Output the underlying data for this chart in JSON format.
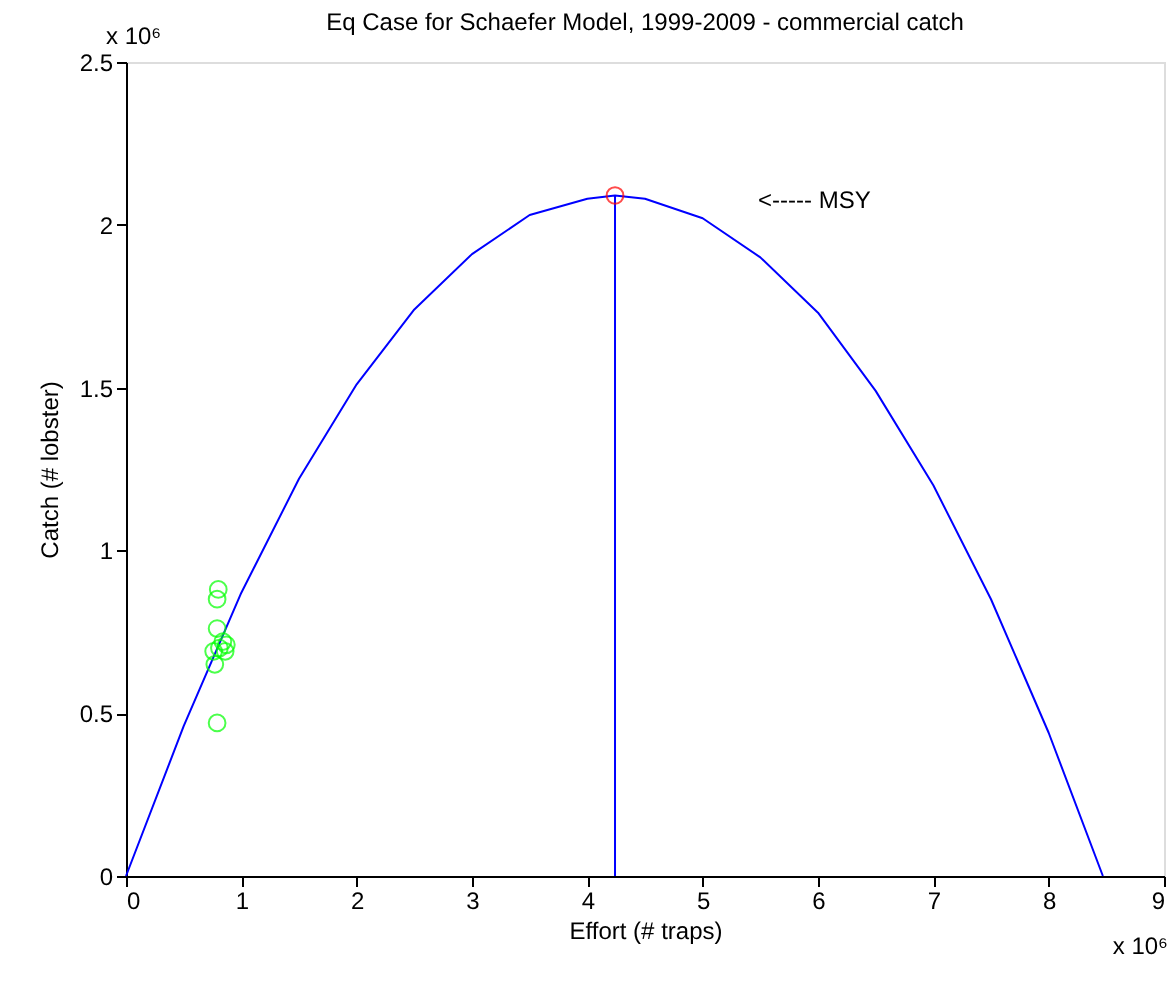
{
  "chart_data": {
    "type": "scatter",
    "title": "Eq Case for Schaefer Model, 1999-2009 - commercial catch",
    "xlabel": "Effort (# traps)",
    "ylabel": "Catch (# lobster)",
    "xlim": [
      0,
      9
    ],
    "xticks": [
      0,
      1,
      2,
      3,
      4,
      5,
      6,
      7,
      8,
      9
    ],
    "ylim": [
      0,
      2.5
    ],
    "yticks": [
      0,
      0.5,
      1,
      1.5,
      2,
      2.5
    ],
    "grid": false,
    "annotations": [
      "<----- MSY",
      "x 10⁶",
      "x 10⁶"
    ],
    "series": [
      {
        "type": "line",
        "color": "#0000ff",
        "line_style": "solid",
        "x": [
          0,
          0.5,
          1,
          1.5,
          2,
          2.5,
          3,
          3.5,
          4,
          4.24,
          4.5,
          5,
          5.5,
          6,
          6.5,
          7,
          7.5,
          8,
          8.47
        ],
        "values": [
          0,
          0.46,
          0.87,
          1.22,
          1.51,
          1.74,
          1.91,
          2.03,
          2.08,
          2.09,
          2.08,
          2.02,
          1.9,
          1.73,
          1.49,
          1.2,
          0.85,
          0.44,
          0
        ]
      },
      {
        "type": "line",
        "color": "#0000ff",
        "line_style": "solid",
        "x": [
          4.24,
          4.24
        ],
        "values": [
          0,
          2.09
        ]
      },
      {
        "color": "#00ff00",
        "marker": "circle",
        "x": [
          0.8,
          0.79,
          0.79,
          0.84,
          0.87,
          0.81,
          0.76,
          0.86,
          0.77,
          0.79
        ],
        "values": [
          0.88,
          0.85,
          0.76,
          0.72,
          0.71,
          0.7,
          0.69,
          0.69,
          0.65,
          0.47
        ]
      },
      {
        "color": "#ff0000",
        "marker": "circle",
        "x": [
          4.24
        ],
        "values": [
          2.09
        ]
      }
    ]
  }
}
